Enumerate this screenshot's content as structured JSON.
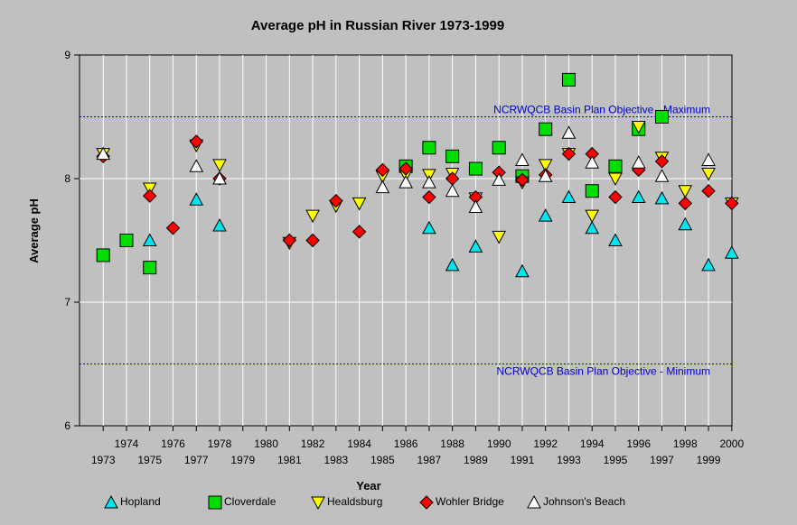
{
  "chart_data": {
    "type": "scatter",
    "title": "Average pH in Russian River 1973-1999",
    "xlabel": "Year",
    "ylabel": "Average pH",
    "xlim": [
      1972,
      2000
    ],
    "ylim": [
      6,
      9
    ],
    "yticks": [
      6,
      7,
      8,
      9
    ],
    "xticks_upper": [
      1974,
      1976,
      1978,
      1980,
      1982,
      1984,
      1986,
      1988,
      1990,
      1992,
      1994,
      1996,
      1998,
      2000
    ],
    "xticks_lower": [
      1973,
      1975,
      1977,
      1979,
      1981,
      1983,
      1985,
      1987,
      1989,
      1991,
      1993,
      1995,
      1997,
      1999
    ],
    "grid": true,
    "legend_position": "bottom",
    "reference_lines": [
      {
        "label": "NCRWQCB Basin Plan Objective - Maximum",
        "y": 8.5,
        "color": "#0000cc"
      },
      {
        "label": "NCRWQCB Basin Plan Objective - Minimum",
        "y": 6.5,
        "color": "#0000cc"
      }
    ],
    "series": [
      {
        "name": "Hopland",
        "marker": "triangle-up",
        "color": "#00e5ee",
        "points": [
          [
            1975,
            7.5
          ],
          [
            1977,
            7.83
          ],
          [
            1978,
            7.62
          ],
          [
            1987,
            7.6
          ],
          [
            1988,
            7.3
          ],
          [
            1989,
            7.45
          ],
          [
            1991,
            7.25
          ],
          [
            1992,
            7.7
          ],
          [
            1993,
            7.85
          ],
          [
            1994,
            7.6
          ],
          [
            1995,
            7.5
          ],
          [
            1996,
            7.85
          ],
          [
            1997,
            7.84
          ],
          [
            1998,
            7.63
          ],
          [
            1999,
            7.3
          ],
          [
            2000,
            7.4
          ]
        ]
      },
      {
        "name": "Cloverdale",
        "marker": "square",
        "color": "#00dd00",
        "points": [
          [
            1973,
            7.38
          ],
          [
            1974,
            7.5
          ],
          [
            1975,
            7.28
          ],
          [
            1986,
            8.1
          ],
          [
            1987,
            8.25
          ],
          [
            1988,
            8.18
          ],
          [
            1989,
            8.08
          ],
          [
            1990,
            8.25
          ],
          [
            1991,
            8.02
          ],
          [
            1992,
            8.4
          ],
          [
            1993,
            8.8
          ],
          [
            1994,
            7.9
          ],
          [
            1995,
            8.1
          ],
          [
            1996,
            8.4
          ],
          [
            1997,
            8.5
          ]
        ]
      },
      {
        "name": "Healdsburg",
        "marker": "triangle-down",
        "color": "#ffff00",
        "points": [
          [
            1973,
            8.2
          ],
          [
            1975,
            7.92
          ],
          [
            1977,
            8.27
          ],
          [
            1978,
            8.11
          ],
          [
            1981,
            7.48
          ],
          [
            1982,
            7.7
          ],
          [
            1983,
            7.78
          ],
          [
            1984,
            7.8
          ],
          [
            1985,
            8.02
          ],
          [
            1986,
            8.03
          ],
          [
            1987,
            8.03
          ],
          [
            1988,
            8.04
          ],
          [
            1989,
            7.84
          ],
          [
            1990,
            7.53
          ],
          [
            1991,
            7.97
          ],
          [
            1992,
            8.11
          ],
          [
            1993,
            8.2
          ],
          [
            1994,
            7.7
          ],
          [
            1995,
            8.0
          ],
          [
            1996,
            8.42
          ],
          [
            1997,
            8.17
          ],
          [
            1998,
            7.9
          ],
          [
            1999,
            8.04
          ],
          [
            2000,
            7.8
          ]
        ]
      },
      {
        "name": "Wohler Bridge",
        "marker": "diamond",
        "color": "#ff0000",
        "points": [
          [
            1973,
            8.18
          ],
          [
            1975,
            7.86
          ],
          [
            1976,
            7.6
          ],
          [
            1977,
            8.3
          ],
          [
            1978,
            8.0
          ],
          [
            1981,
            7.5
          ],
          [
            1982,
            7.5
          ],
          [
            1983,
            7.82
          ],
          [
            1984,
            7.57
          ],
          [
            1985,
            8.07
          ],
          [
            1986,
            8.08
          ],
          [
            1987,
            7.85
          ],
          [
            1988,
            8.0
          ],
          [
            1989,
            7.85
          ],
          [
            1990,
            8.05
          ],
          [
            1991,
            7.99
          ],
          [
            1992,
            8.03
          ],
          [
            1993,
            8.2
          ],
          [
            1994,
            8.2
          ],
          [
            1995,
            7.85
          ],
          [
            1996,
            8.07
          ],
          [
            1997,
            8.14
          ],
          [
            1998,
            7.8
          ],
          [
            1999,
            7.9
          ],
          [
            2000,
            7.8
          ]
        ]
      },
      {
        "name": "Johnson's Beach",
        "marker": "triangle-up-open",
        "color": "#ffffff",
        "points": [
          [
            1973,
            8.2
          ],
          [
            1977,
            8.1
          ],
          [
            1978,
            8.0
          ],
          [
            1985,
            7.93
          ],
          [
            1986,
            7.97
          ],
          [
            1987,
            7.97
          ],
          [
            1988,
            7.9
          ],
          [
            1989,
            7.77
          ],
          [
            1990,
            7.99
          ],
          [
            1991,
            8.15
          ],
          [
            1992,
            8.02
          ],
          [
            1993,
            8.37
          ],
          [
            1994,
            8.13
          ],
          [
            1996,
            8.13
          ],
          [
            1997,
            8.02
          ],
          [
            1999,
            8.15
          ]
        ]
      }
    ]
  }
}
